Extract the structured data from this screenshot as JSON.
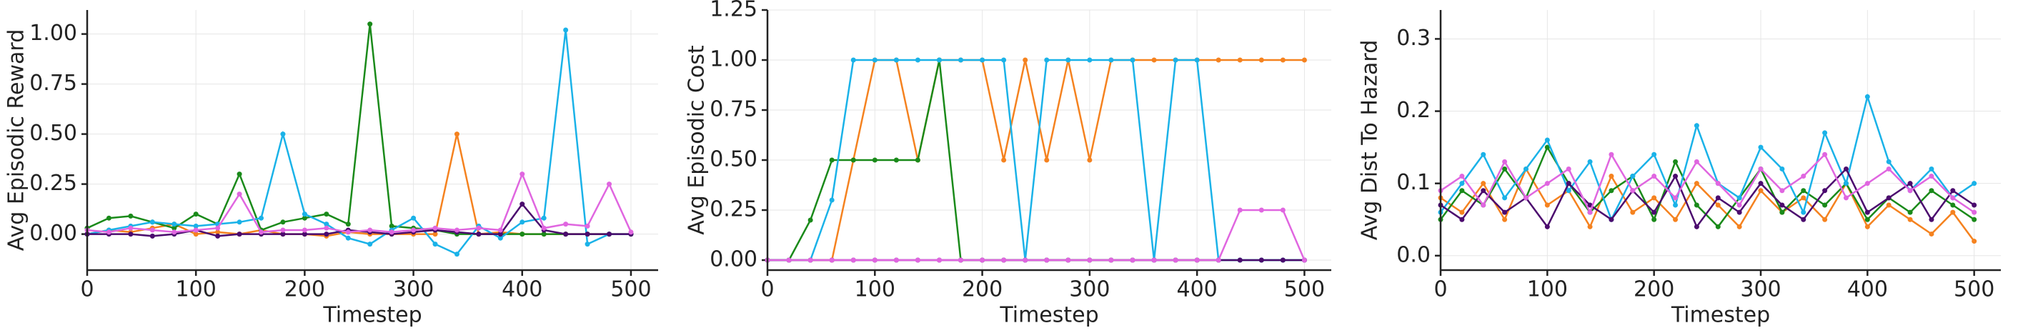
{
  "chart_data": [
    {
      "type": "line",
      "xlabel": "Timestep",
      "ylabel": "Avg Episodic Reward",
      "x": [
        0,
        20,
        40,
        60,
        80,
        100,
        120,
        140,
        160,
        180,
        200,
        220,
        240,
        260,
        280,
        300,
        320,
        340,
        360,
        380,
        400,
        420,
        440,
        460,
        480,
        500
      ],
      "xlim": [
        0,
        525
      ],
      "xticks": [
        0,
        100,
        200,
        300,
        400,
        500
      ],
      "ylim": [
        -0.18,
        1.12
      ],
      "yticks": [
        {
          "value": 0,
          "label": "0.00"
        },
        {
          "value": 0.25,
          "label": "0.25"
        },
        {
          "value": 0.5,
          "label": "0.50"
        },
        {
          "value": 0.75,
          "label": "0.75"
        },
        {
          "value": 1,
          "label": "1.00"
        }
      ],
      "grid": true,
      "series": [
        {
          "color": "#f5821f",
          "values": [
            0,
            0.02,
            0.01,
            0.03,
            0.05,
            0,
            0.01,
            0,
            0.02,
            0,
            0,
            -0.01,
            0.01,
            0,
            0,
            0,
            0,
            0.5,
            0,
            0.01,
            0,
            0,
            0,
            0,
            0,
            0
          ]
        },
        {
          "color": "#1a8a1a",
          "values": [
            0.03,
            0.08,
            0.09,
            0.06,
            0.03,
            0.1,
            0.05,
            0.3,
            0.02,
            0.06,
            0.08,
            0.1,
            0.05,
            1.05,
            0.04,
            0.03,
            0.02,
            0,
            0,
            0,
            0,
            0,
            0,
            0,
            0,
            0
          ]
        },
        {
          "color": "#1ab2e8",
          "values": [
            0,
            0.02,
            0.04,
            0.06,
            0.05,
            0.04,
            0.05,
            0.06,
            0.08,
            0.5,
            0.1,
            0.05,
            -0.02,
            -0.05,
            0.02,
            0.08,
            -0.05,
            -0.1,
            0.04,
            -0.02,
            0.06,
            0.08,
            1.02,
            -0.05,
            0,
            0
          ]
        },
        {
          "color": "#4b0a6e",
          "values": [
            0,
            0,
            0,
            -0.01,
            0,
            0.02,
            -0.01,
            0,
            0,
            0,
            0,
            0,
            0.02,
            0.01,
            0,
            0.01,
            0.02,
            0.01,
            0,
            0,
            0.15,
            0.02,
            0,
            0,
            0,
            0
          ]
        },
        {
          "color": "#e066e0",
          "values": [
            0.02,
            0.01,
            0.03,
            0.02,
            0.01,
            0.02,
            0.03,
            0.2,
            0.01,
            0.02,
            0.02,
            0.03,
            0.01,
            0.02,
            0.01,
            0.02,
            0.03,
            0.02,
            0.03,
            0.02,
            0.3,
            0.03,
            0.05,
            0.04,
            0.25,
            0.01
          ]
        }
      ]
    },
    {
      "type": "line",
      "xlabel": "Timestep",
      "ylabel": "Avg Episodic Cost",
      "x": [
        0,
        20,
        40,
        60,
        80,
        100,
        120,
        140,
        160,
        180,
        200,
        220,
        240,
        260,
        280,
        300,
        320,
        340,
        360,
        380,
        400,
        420,
        440,
        460,
        480,
        500
      ],
      "xlim": [
        0,
        525
      ],
      "xticks": [
        0,
        100,
        200,
        300,
        400,
        500
      ],
      "ylim": [
        -0.05,
        1.25
      ],
      "yticks": [
        {
          "value": 0,
          "label": "0.00"
        },
        {
          "value": 0.25,
          "label": "0.25"
        },
        {
          "value": 0.5,
          "label": "0.50"
        },
        {
          "value": 0.75,
          "label": "0.75"
        },
        {
          "value": 1,
          "label": "1.00"
        },
        {
          "value": 1.25,
          "label": "1.25"
        }
      ],
      "grid": true,
      "series": [
        {
          "color": "#f5821f",
          "values": [
            0,
            0,
            0,
            0,
            0.5,
            1,
            1,
            0.5,
            1,
            1,
            1,
            0.5,
            1,
            0.5,
            1,
            0.5,
            1,
            1,
            1,
            1,
            1,
            1,
            1,
            1,
            1,
            1
          ]
        },
        {
          "color": "#1a8a1a",
          "values": [
            0,
            0,
            0.2,
            0.5,
            0.5,
            0.5,
            0.5,
            0.5,
            1,
            0,
            0,
            0,
            0,
            0,
            0,
            0,
            0,
            0,
            0,
            0,
            0,
            0,
            0,
            0,
            0,
            0
          ]
        },
        {
          "color": "#1ab2e8",
          "values": [
            0,
            0,
            0,
            0.3,
            1,
            1,
            1,
            1,
            1,
            1,
            1,
            1,
            0,
            1,
            1,
            1,
            1,
            1,
            0,
            1,
            1,
            0,
            0,
            0,
            0,
            0
          ]
        },
        {
          "color": "#4b0a6e",
          "values": [
            0,
            0,
            0,
            0,
            0,
            0,
            0,
            0,
            0,
            0,
            0,
            0,
            0,
            0,
            0,
            0,
            0,
            0,
            0,
            0,
            0,
            0,
            0,
            0,
            0,
            0
          ]
        },
        {
          "color": "#e066e0",
          "values": [
            0,
            0,
            0,
            0,
            0,
            0,
            0,
            0,
            0,
            0,
            0,
            0,
            0,
            0,
            0,
            0,
            0,
            0,
            0,
            0,
            0,
            0,
            0.25,
            0.25,
            0.25,
            0
          ]
        }
      ]
    },
    {
      "type": "line",
      "xlabel": "Timestep",
      "ylabel": "Avg Dist To Hazard",
      "x": [
        0,
        20,
        40,
        60,
        80,
        100,
        120,
        140,
        160,
        180,
        200,
        220,
        240,
        260,
        280,
        300,
        320,
        340,
        360,
        380,
        400,
        420,
        440,
        460,
        480,
        500
      ],
      "xlim": [
        0,
        525
      ],
      "xticks": [
        0,
        100,
        200,
        300,
        400,
        500
      ],
      "ylim": [
        -0.02,
        0.34
      ],
      "yticks": [
        {
          "value": 0,
          "label": "0.0"
        },
        {
          "value": 0.1,
          "label": "0.1"
        },
        {
          "value": 0.2,
          "label": "0.2"
        },
        {
          "value": 0.3,
          "label": "0.3"
        }
      ],
      "grid": true,
      "series": [
        {
          "color": "#f5821f",
          "values": [
            0.08,
            0.06,
            0.1,
            0.05,
            0.12,
            0.07,
            0.09,
            0.04,
            0.11,
            0.06,
            0.08,
            0.05,
            0.1,
            0.07,
            0.04,
            0.09,
            0.06,
            0.08,
            0.05,
            0.1,
            0.04,
            0.07,
            0.05,
            0.03,
            0.06,
            0.02
          ]
        },
        {
          "color": "#1a8a1a",
          "values": [
            0.05,
            0.09,
            0.07,
            0.12,
            0.08,
            0.15,
            0.1,
            0.06,
            0.09,
            0.11,
            0.05,
            0.13,
            0.07,
            0.04,
            0.08,
            0.12,
            0.06,
            0.09,
            0.07,
            0.1,
            0.05,
            0.08,
            0.06,
            0.09,
            0.07,
            0.05
          ]
        },
        {
          "color": "#1ab2e8",
          "values": [
            0.06,
            0.1,
            0.14,
            0.08,
            0.12,
            0.16,
            0.09,
            0.13,
            0.05,
            0.11,
            0.14,
            0.07,
            0.18,
            0.1,
            0.08,
            0.15,
            0.12,
            0.06,
            0.17,
            0.1,
            0.22,
            0.13,
            0.09,
            0.12,
            0.08,
            0.1
          ]
        },
        {
          "color": "#4b0a6e",
          "values": [
            0.07,
            0.05,
            0.09,
            0.06,
            0.08,
            0.04,
            0.1,
            0.07,
            0.05,
            0.09,
            0.06,
            0.11,
            0.04,
            0.08,
            0.06,
            0.1,
            0.07,
            0.05,
            0.09,
            0.12,
            0.06,
            0.08,
            0.1,
            0.05,
            0.09,
            0.07
          ]
        },
        {
          "color": "#e066e0",
          "values": [
            0.09,
            0.11,
            0.07,
            0.13,
            0.08,
            0.1,
            0.12,
            0.06,
            0.14,
            0.09,
            0.11,
            0.08,
            0.13,
            0.1,
            0.07,
            0.12,
            0.09,
            0.11,
            0.14,
            0.08,
            0.1,
            0.12,
            0.09,
            0.11,
            0.08,
            0.06
          ]
        }
      ]
    }
  ]
}
